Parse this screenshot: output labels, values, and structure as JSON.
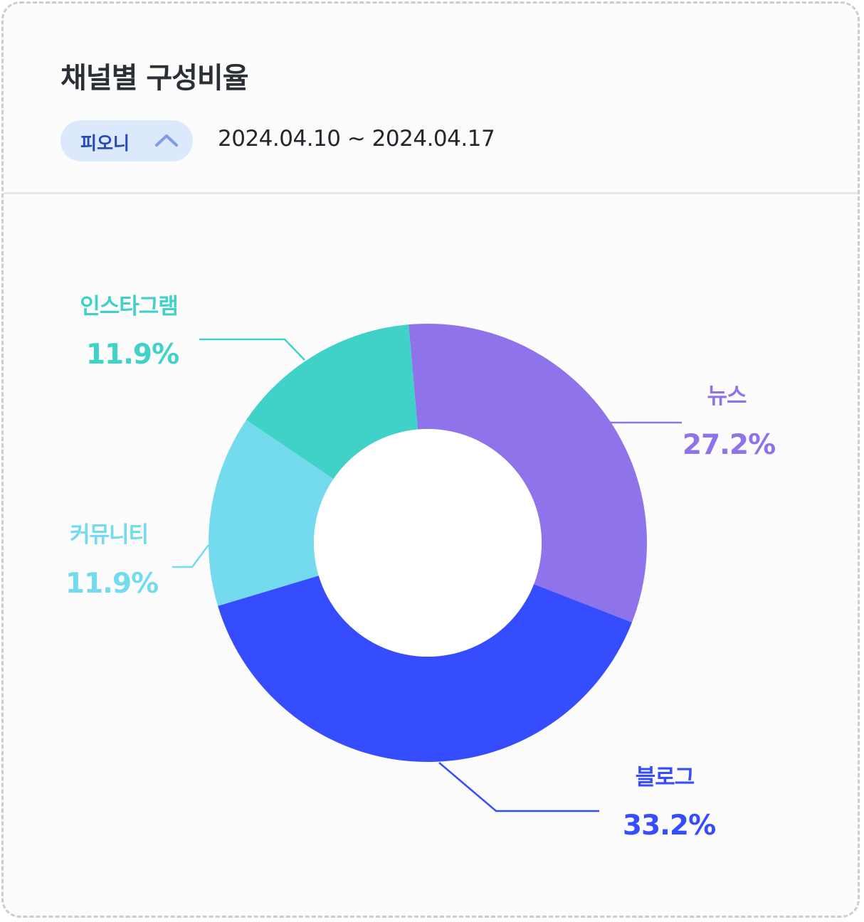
{
  "header": {
    "title": "채널별 구성비율",
    "filter_label": "피오니",
    "filter_icon": "chevron-up-icon",
    "date_range": "2024.04.10 ~ 2024.04.17"
  },
  "colors": {
    "chip_bg": "#dce8fb",
    "chip_text": "#2449b8",
    "title": "#2b2f36"
  },
  "chart_data": {
    "type": "pie",
    "donut": true,
    "title": "",
    "slices": [
      {
        "label": "뉴스",
        "value": 27.2,
        "display": "27.2%",
        "color": "#8f73ea"
      },
      {
        "label": "블로그",
        "value": 33.2,
        "display": "33.2%",
        "color": "#354dff"
      },
      {
        "label": "커뮤니티",
        "value": 11.9,
        "display": "11.9%",
        "color": "#74dbee"
      },
      {
        "label": "인스타그램",
        "value": 11.9,
        "display": "11.9%",
        "color": "#40d1c9"
      }
    ]
  }
}
